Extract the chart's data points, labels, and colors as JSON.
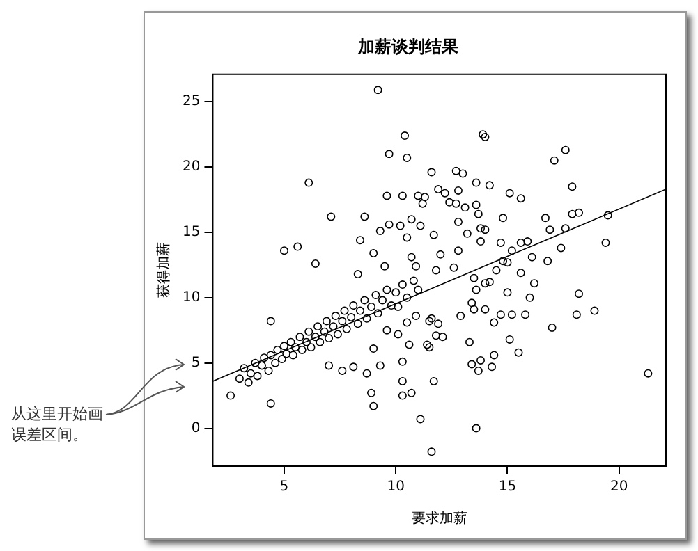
{
  "chart_data": {
    "type": "scatter",
    "title": "加薪谈判结果",
    "xlabel": "要求加薪",
    "ylabel": "获得加薪",
    "annotations": [
      "从这里开始画误差区间。"
    ],
    "xlim": [
      1.8,
      22.1
    ],
    "ylim": [
      -2.9,
      27.1
    ],
    "xticks": [
      5,
      10,
      15,
      20
    ],
    "yticks": [
      0,
      5,
      10,
      15,
      20,
      25
    ],
    "grid": false,
    "legend": false,
    "marker": "circle",
    "series": [
      {
        "color": "#000000",
        "x": [
          9.2,
          10.4,
          9.7,
          10.5,
          11.6,
          6.1,
          9.6,
          10.3,
          11.0,
          11.3,
          11.9,
          12.2,
          11.2,
          12.4,
          7.1,
          8.6,
          9.7,
          10.2,
          10.7,
          11.1,
          11.7,
          9.3,
          8.4,
          9.0,
          10.5,
          5.0,
          5.6,
          6.4,
          10.7,
          10.9,
          12.0,
          9.5,
          13.9,
          14.0,
          17.6,
          17.1,
          17.9,
          12.7,
          13.0,
          13.6,
          14.2,
          12.8,
          15.1,
          15.6,
          12.7,
          13.1,
          13.6,
          13.7,
          12.8,
          14.8,
          16.7,
          17.9,
          18.2,
          19.5,
          13.8,
          14.0,
          16.9,
          17.6,
          13.2,
          13.8,
          14.7,
          15.6,
          15.9,
          15.2,
          16.1,
          16.8,
          17.4,
          19.4,
          12.8,
          14.8,
          15.0,
          14.5,
          15.6,
          11.8,
          12.6,
          13.5,
          14.2,
          16.2,
          15.0,
          16.0,
          18.2,
          18.1,
          18.9,
          13.6,
          14.0,
          13.4,
          13.5,
          14.0,
          12.9,
          14.4,
          14.7,
          15.2,
          15.8,
          17.0,
          15.1,
          15.5,
          14.4,
          14.3,
          13.8,
          13.4,
          13.7,
          13.3,
          11.8,
          12.1,
          11.9,
          11.6,
          11.5,
          11.7,
          13.6,
          11.6,
          21.3,
          4.4,
          4.4,
          2.6,
          7.0,
          7.6,
          8.1,
          8.7,
          8.9,
          9.0,
          10.3,
          10.7,
          10.3,
          11.1,
          10.3,
          9.3,
          8.3,
          9.6,
          10.1,
          9.0,
          10.6,
          11.4,
          10.9,
          11.5,
          10.5,
          10.1,
          3.0,
          3.2,
          3.4,
          3.5,
          3.7,
          3.8,
          4.0,
          4.1,
          4.3,
          4.4,
          4.6,
          4.7,
          4.9,
          5.0,
          5.1,
          5.3,
          5.4,
          5.5,
          5.7,
          5.8,
          6.0,
          6.1,
          6.2,
          6.4,
          6.5,
          6.6,
          6.8,
          6.9,
          7.0,
          7.2,
          7.3,
          7.4,
          7.6,
          7.7,
          7.8,
          8.0,
          8.1,
          8.3,
          8.4,
          8.6,
          8.7,
          8.9,
          9.1,
          9.2,
          9.4,
          9.6,
          9.8,
          10.0,
          10.3,
          10.5,
          10.8,
          11.0
        ],
        "values": [
          25.9,
          22.4,
          21.0,
          20.7,
          19.6,
          18.8,
          17.8,
          17.8,
          17.8,
          17.7,
          18.3,
          18.0,
          17.2,
          17.3,
          16.2,
          16.2,
          15.6,
          15.5,
          16.0,
          15.5,
          14.8,
          15.1,
          14.4,
          13.4,
          14.6,
          13.6,
          13.9,
          12.6,
          13.1,
          12.4,
          13.3,
          12.4,
          22.5,
          22.3,
          21.3,
          20.5,
          18.5,
          19.7,
          19.5,
          18.8,
          18.6,
          18.2,
          18.0,
          17.6,
          17.2,
          16.9,
          17.1,
          16.4,
          15.8,
          16.1,
          16.1,
          16.4,
          16.5,
          16.3,
          15.3,
          15.2,
          15.2,
          15.3,
          14.9,
          14.3,
          14.2,
          14.2,
          14.3,
          13.6,
          13.1,
          12.8,
          13.8,
          14.2,
          13.6,
          12.8,
          12.7,
          12.1,
          11.9,
          12.1,
          12.3,
          11.5,
          11.2,
          11.1,
          10.4,
          10.0,
          10.3,
          8.7,
          9.0,
          10.6,
          11.1,
          9.6,
          9.1,
          9.1,
          8.6,
          8.1,
          8.7,
          8.7,
          8.7,
          7.7,
          6.8,
          5.8,
          5.6,
          4.7,
          5.2,
          4.9,
          4.4,
          6.6,
          7.1,
          7.0,
          8.0,
          8.4,
          6.2,
          3.6,
          0.0,
          -1.8,
          4.2,
          8.2,
          1.9,
          2.5,
          4.8,
          4.4,
          4.7,
          4.2,
          2.7,
          1.7,
          2.5,
          2.7,
          3.6,
          0.7,
          5.1,
          4.8,
          11.8,
          7.5,
          7.2,
          6.1,
          6.4,
          6.4,
          8.6,
          8.2,
          8.1,
          9.3,
          3.8,
          4.6,
          3.5,
          4.2,
          5.0,
          4.0,
          4.8,
          5.4,
          4.4,
          5.6,
          5.0,
          6.0,
          5.3,
          6.3,
          5.7,
          6.6,
          5.6,
          6.2,
          7.0,
          6.0,
          6.6,
          7.4,
          6.2,
          7.0,
          7.8,
          6.6,
          7.4,
          8.2,
          6.9,
          7.8,
          8.6,
          7.2,
          8.2,
          9.0,
          7.6,
          8.5,
          9.4,
          8.0,
          9.0,
          9.8,
          8.4,
          9.3,
          10.2,
          8.8,
          9.8,
          10.6,
          9.4,
          10.4,
          11.0,
          10.0,
          11.3,
          10.6
        ]
      },
      {
        "type": "line",
        "color": "#000000",
        "marker": "none",
        "x": [
          1.8,
          22.1
        ],
        "values": [
          3.6,
          18.3
        ]
      }
    ]
  }
}
